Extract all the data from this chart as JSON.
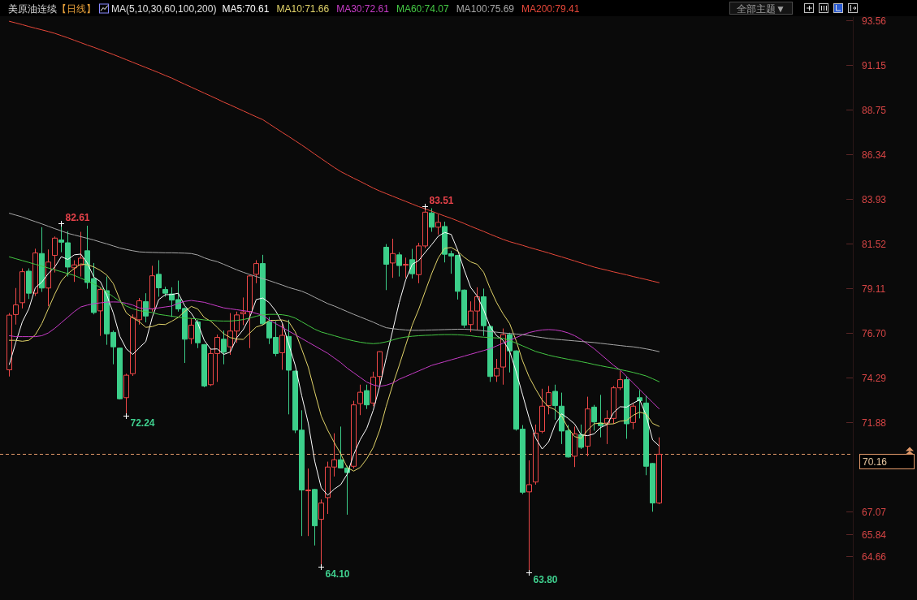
{
  "chart_data": {
    "type": "candlestick",
    "title": "美原油连续",
    "subtitle": "【日线】",
    "legend_title": "MA(5,10,30,60,100,200)",
    "legend": "top",
    "tick_labels": "y",
    "categories": [
      null,
      null,
      null,
      null,
      null,
      null,
      null,
      null,
      null,
      null,
      null,
      null,
      null,
      null,
      null,
      null,
      null,
      null,
      null,
      null,
      null,
      null,
      null,
      null,
      null,
      null,
      null,
      null,
      null,
      null,
      null,
      null,
      null,
      null,
      null,
      null,
      null,
      null,
      null,
      null,
      null,
      null,
      null,
      null,
      null,
      null,
      null,
      null,
      null,
      null,
      null,
      null,
      null,
      null,
      null,
      null,
      null,
      null,
      null,
      null,
      null,
      null,
      null,
      null,
      null,
      null,
      null,
      null,
      null,
      null,
      null,
      null,
      null,
      null,
      null,
      null,
      null,
      null,
      null,
      null,
      null,
      null,
      null,
      null,
      null,
      null,
      null,
      null,
      null,
      null,
      null,
      null,
      null,
      null,
      null,
      null,
      null,
      null,
      null,
      null,
      null
    ],
    "ohlc": [
      [
        74.71,
        77.77,
        74.35,
        77.66
      ],
      [
        77.69,
        79.12,
        77.15,
        78.21
      ],
      [
        78.33,
        80.18,
        78.02,
        80.0
      ],
      [
        80.03,
        80.18,
        78.53,
        78.84
      ],
      [
        78.84,
        81.24,
        78.69,
        81.01
      ],
      [
        80.98,
        82.4,
        78.91,
        79.12
      ],
      [
        79.12,
        81.2,
        78.14,
        80.52
      ],
      [
        80.88,
        81.9,
        79.96,
        81.81
      ],
      [
        81.71,
        82.61,
        81.05,
        81.59
      ],
      [
        81.56,
        82.19,
        79.74,
        80.25
      ],
      [
        80.21,
        80.62,
        79.45,
        80.37
      ],
      [
        80.35,
        82.15,
        79.74,
        80.73
      ],
      [
        81.13,
        82.48,
        79.08,
        79.42
      ],
      [
        79.63,
        80.47,
        77.7,
        77.8
      ],
      [
        77.89,
        79.16,
        76.54,
        79.04
      ],
      [
        78.98,
        79.74,
        76.06,
        76.65
      ],
      [
        76.73,
        76.83,
        75.01,
        75.95
      ],
      [
        75.88,
        75.91,
        73.11,
        73.15
      ],
      [
        73.21,
        74.5,
        72.24,
        74.42
      ],
      [
        74.5,
        77.7,
        74.38,
        77.53
      ],
      [
        77.41,
        78.58,
        77.15,
        78.43
      ],
      [
        78.39,
        78.84,
        77.27,
        77.61
      ],
      [
        77.99,
        80.32,
        77.85,
        79.78
      ],
      [
        79.86,
        80.62,
        78.65,
        79.13
      ],
      [
        79.04,
        79.19,
        78.65,
        78.84
      ],
      [
        78.8,
        79.16,
        77.56,
        78.47
      ],
      [
        78.5,
        79.52,
        77.85,
        77.99
      ],
      [
        78.02,
        78.07,
        75.08,
        76.36
      ],
      [
        76.39,
        77.48,
        76.1,
        77.12
      ],
      [
        77.29,
        77.41,
        75.88,
        76.17
      ],
      [
        76.07,
        76.1,
        73.77,
        73.84
      ],
      [
        73.91,
        75.88,
        73.84,
        75.59
      ],
      [
        75.59,
        76.61,
        74.06,
        76.46
      ],
      [
        76.36,
        76.83,
        75.01,
        75.66
      ],
      [
        75.95,
        77.77,
        75.52,
        76.8
      ],
      [
        76.8,
        77.85,
        76.17,
        77.67
      ],
      [
        77.73,
        78.61,
        77.12,
        77.83
      ],
      [
        77.85,
        79.82,
        75.88,
        79.77
      ],
      [
        79.86,
        80.62,
        79.38,
        80.44
      ],
      [
        80.44,
        80.91,
        77.12,
        77.19
      ],
      [
        77.29,
        77.56,
        76.1,
        76.43
      ],
      [
        76.46,
        77.34,
        75.44,
        75.59
      ],
      [
        75.63,
        77.19,
        74.71,
        76.57
      ],
      [
        76.51,
        77.41,
        72.31,
        74.69
      ],
      [
        74.64,
        74.67,
        71.3,
        71.46
      ],
      [
        71.46,
        72.53,
        65.75,
        68.23
      ],
      [
        68.2,
        69.39,
        65.75,
        68.23
      ],
      [
        68.26,
        68.29,
        65.24,
        66.3
      ],
      [
        66.65,
        67.72,
        64.1,
        67.53
      ],
      [
        67.82,
        69.76,
        66.94,
        69.47
      ],
      [
        69.47,
        71.29,
        68.96,
        69.86
      ],
      [
        69.86,
        71.65,
        69.39,
        69.42
      ],
      [
        69.42,
        69.54,
        66.9,
        69.17
      ],
      [
        69.51,
        73.04,
        69.39,
        72.82
      ],
      [
        72.89,
        73.91,
        72.27,
        73.5
      ],
      [
        73.59,
        73.91,
        72.6,
        72.82
      ],
      [
        72.92,
        74.61,
        72.75,
        74.32
      ],
      [
        74.35,
        75.71,
        73.91,
        75.69
      ],
      [
        81.32,
        81.49,
        79.01,
        80.4
      ],
      [
        80.47,
        81.78,
        79.67,
        80.98
      ],
      [
        80.91,
        81.05,
        79.74,
        80.33
      ],
      [
        80.35,
        80.76,
        79.67,
        80.4
      ],
      [
        80.65,
        81.23,
        79.63,
        79.89
      ],
      [
        79.84,
        81.56,
        79.38,
        81.39
      ],
      [
        81.39,
        83.51,
        81.27,
        83.21
      ],
      [
        83.17,
        83.42,
        82.15,
        82.4
      ],
      [
        82.4,
        83.09,
        82.0,
        82.66
      ],
      [
        82.44,
        82.7,
        80.5,
        80.94
      ],
      [
        80.97,
        81.13,
        79.89,
        80.85
      ],
      [
        80.88,
        80.91,
        78.5,
        78.94
      ],
      [
        79.01,
        79.04,
        76.97,
        77.12
      ],
      [
        77.15,
        78.4,
        76.75,
        77.88
      ],
      [
        77.88,
        79.16,
        76.83,
        78.65
      ],
      [
        78.65,
        79.09,
        76.54,
        77.09
      ],
      [
        77.05,
        77.12,
        74.06,
        74.35
      ],
      [
        74.38,
        75.3,
        74.06,
        74.79
      ],
      [
        74.86,
        76.94,
        73.91,
        76.61
      ],
      [
        76.61,
        76.71,
        74.57,
        75.73
      ],
      [
        75.73,
        75.76,
        71.43,
        71.51
      ],
      [
        71.51,
        71.73,
        68.01,
        68.11
      ],
      [
        68.13,
        69.83,
        63.8,
        68.52
      ],
      [
        68.66,
        71.76,
        68.52,
        71.29
      ],
      [
        71.39,
        73.69,
        71.29,
        72.75
      ],
      [
        72.78,
        73.84,
        72.31,
        73.48
      ],
      [
        73.55,
        73.91,
        72.02,
        72.78
      ],
      [
        72.75,
        73.48,
        70.71,
        71.41
      ],
      [
        71.43,
        71.73,
        69.98,
        70.01
      ],
      [
        70.05,
        71.65,
        69.47,
        71.26
      ],
      [
        71.22,
        71.76,
        70.44,
        70.53
      ],
      [
        70.59,
        73.26,
        70.05,
        72.6
      ],
      [
        72.7,
        72.82,
        71.43,
        71.9
      ],
      [
        71.84,
        73.36,
        71.07,
        71.7
      ],
      [
        71.84,
        72.53,
        70.71,
        72.09
      ],
      [
        72.09,
        73.84,
        71.8,
        73.74
      ],
      [
        73.74,
        74.64,
        73.62,
        74.18
      ],
      [
        74.18,
        74.35,
        70.99,
        71.8
      ],
      [
        71.87,
        72.89,
        71.51,
        72.75
      ],
      [
        73.21,
        73.62,
        72.09,
        73.04
      ],
      [
        72.92,
        73.33,
        69.03,
        69.51
      ],
      [
        69.66,
        69.69,
        67.06,
        67.53
      ],
      [
        67.53,
        71.07,
        67.47,
        70.16
      ]
    ],
    "colors": [
      "#f04848",
      "#f04848",
      "#f04848",
      "#3ccf8a",
      "#f04848",
      "#3ccf8a",
      "#f04848",
      "#f04848",
      "#3ccf8a",
      "#3ccf8a",
      "#f04848",
      "#f04848",
      "#3ccf8a",
      "#3ccf8a",
      "#f04848",
      "#3ccf8a",
      "#3ccf8a",
      "#3ccf8a",
      "#f04848",
      "#f04848",
      "#f04848",
      "#3ccf8a",
      "#f04848",
      "#3ccf8a",
      "#3ccf8a",
      "#3ccf8a",
      "#3ccf8a",
      "#3ccf8a",
      "#f04848",
      "#3ccf8a",
      "#3ccf8a",
      "#f04848",
      "#f04848",
      "#3ccf8a",
      "#f04848",
      "#f04848",
      "#f04848",
      "#f04848",
      "#f04848",
      "#3ccf8a",
      "#3ccf8a",
      "#3ccf8a",
      "#f04848",
      "#3ccf8a",
      "#3ccf8a",
      "#3ccf8a",
      "#f04848",
      "#3ccf8a",
      "#f04848",
      "#f04848",
      "#f04848",
      "#3ccf8a",
      "#3ccf8a",
      "#f04848",
      "#f04848",
      "#3ccf8a",
      "#f04848",
      "#f04848",
      "#3ccf8a",
      "#f04848",
      "#3ccf8a",
      "#f04848",
      "#3ccf8a",
      "#f04848",
      "#f04848",
      "#3ccf8a",
      "#f04848",
      "#3ccf8a",
      "#3ccf8a",
      "#3ccf8a",
      "#3ccf8a",
      "#f04848",
      "#f04848",
      "#3ccf8a",
      "#3ccf8a",
      "#f04848",
      "#f04848",
      "#3ccf8a",
      "#3ccf8a",
      "#3ccf8a",
      "#f04848",
      "#f04848",
      "#f04848",
      "#f04848",
      "#3ccf8a",
      "#3ccf8a",
      "#3ccf8a",
      "#f04848",
      "#3ccf8a",
      "#f04848",
      "#3ccf8a",
      "#3ccf8a",
      "#f04848",
      "#f04848",
      "#f04848",
      "#3ccf8a",
      "#f04848",
      "#3ccf8a",
      "#3ccf8a",
      "#3ccf8a",
      "#f04848"
    ],
    "series": [
      {
        "name": "MA5:70.61",
        "type": "line",
        "color": "#ffffff",
        "values": [
          75.0,
          76.2,
          77.3,
          78.0,
          79.14,
          79.44,
          79.9,
          80.26,
          80.81,
          80.66,
          80.91,
          80.95,
          80.47,
          79.71,
          79.47,
          78.73,
          77.77,
          76.52,
          75.84,
          75.54,
          75.9,
          76.23,
          77.55,
          78.5,
          78.76,
          78.77,
          78.84,
          78.16,
          77.76,
          77.22,
          76.3,
          75.82,
          75.84,
          75.54,
          75.67,
          76.44,
          76.88,
          77.55,
          78.5,
          78.58,
          78.33,
          77.88,
          77.24,
          76.09,
          74.95,
          73.31,
          71.84,
          69.78,
          68.35,
          67.95,
          68.28,
          68.52,
          69.09,
          70.15,
          70.95,
          71.55,
          72.53,
          73.83,
          75.35,
          76.84,
          78.34,
          79.56,
          80.4,
          80.6,
          81.04,
          81.46,
          81.91,
          82.12,
          82.01,
          81.16,
          80.1,
          79.15,
          78.69,
          77.94,
          77.02,
          76.55,
          76.3,
          75.71,
          74.6,
          73.35,
          72.1,
          71.03,
          70.44,
          70.83,
          71.76,
          72.34,
          72.09,
          71.79,
          71.2,
          71.16,
          71.26,
          71.6,
          71.76,
          72.41,
          72.72,
          72.7,
          72.91,
          73.1,
          72.26,
          70.93,
          70.61
        ]
      },
      {
        "name": "MA10:71.66",
        "type": "line",
        "color": "#e2d46a",
        "values": [
          76.3,
          76.3,
          76.25,
          76.3,
          76.6,
          77.2,
          78.0,
          78.8,
          79.5,
          79.9,
          80.17,
          80.42,
          80.37,
          80.26,
          80.07,
          79.82,
          79.36,
          78.5,
          77.78,
          77.51,
          77.31,
          77.0,
          77.04,
          77.17,
          77.15,
          77.33,
          77.54,
          77.86,
          78.13,
          77.99,
          77.53,
          77.33,
          77.0,
          76.65,
          76.45,
          76.37,
          76.35,
          76.69,
          77.02,
          77.13,
          77.38,
          77.38,
          77.4,
          77.3,
          76.76,
          75.82,
          74.86,
          73.51,
          72.22,
          71.45,
          70.79,
          70.18,
          69.44,
          69.25,
          69.45,
          69.91,
          70.52,
          71.46,
          72.75,
          73.9,
          74.95,
          76.04,
          77.12,
          77.97,
          78.94,
          79.9,
          80.74,
          81.26,
          81.31,
          81.1,
          80.78,
          80.53,
          80.4,
          79.97,
          79.09,
          78.33,
          77.72,
          77.2,
          76.27,
          75.18,
          74.32,
          73.67,
          73.08,
          72.71,
          72.56,
          72.22,
          71.56,
          71.11,
          71.01,
          71.46,
          71.8,
          71.84,
          71.78,
          71.8,
          71.94,
          71.98,
          72.26,
          72.43,
          72.33,
          71.82,
          71.66
        ]
      },
      {
        "name": "MA30:72.61",
        "type": "line",
        "color": "#c83cc8",
        "values": [
          76.55,
          76.5,
          76.5,
          76.5,
          76.5,
          76.55,
          76.7,
          76.95,
          77.25,
          77.55,
          77.85,
          78.1,
          78.2,
          78.28,
          78.32,
          78.36,
          78.37,
          78.36,
          78.3,
          78.2,
          78.05,
          78.0,
          78.0,
          78.05,
          78.1,
          78.15,
          78.3,
          78.4,
          78.45,
          78.4,
          78.35,
          78.25,
          78.15,
          78.05,
          78.0,
          77.95,
          77.9,
          77.85,
          77.75,
          77.65,
          77.4,
          77.2,
          77.0,
          76.8,
          76.6,
          76.4,
          76.2,
          76.0,
          75.8,
          75.6,
          75.35,
          75.1,
          74.8,
          74.55,
          74.3,
          74.05,
          73.9,
          73.82,
          73.88,
          74.0,
          74.2,
          74.35,
          74.5,
          74.65,
          74.8,
          74.95,
          75.05,
          75.15,
          75.25,
          75.35,
          75.45,
          75.55,
          75.65,
          75.75,
          75.85,
          76.0,
          76.15,
          76.3,
          76.45,
          76.6,
          76.72,
          76.8,
          76.86,
          76.88,
          76.86,
          76.8,
          76.7,
          76.55,
          76.35,
          76.1,
          75.85,
          75.55,
          75.25,
          74.95,
          74.7,
          74.35,
          74.0,
          73.65,
          73.3,
          72.95,
          72.61
        ]
      },
      {
        "name": "MA60:74.07",
        "type": "line",
        "color": "#44c844",
        "values": [
          80.8,
          80.7,
          80.6,
          80.5,
          80.4,
          80.3,
          80.2,
          80.1,
          80.0,
          79.9,
          79.8,
          79.65,
          79.5,
          79.35,
          79.15,
          78.9,
          78.65,
          78.4,
          78.15,
          78.0,
          77.9,
          77.85,
          77.8,
          77.7,
          77.65,
          77.6,
          77.55,
          77.5,
          77.48,
          77.45,
          77.4,
          77.37,
          77.35,
          77.34,
          77.34,
          77.37,
          77.42,
          77.5,
          77.6,
          77.68,
          77.7,
          77.7,
          77.68,
          77.62,
          77.5,
          77.3,
          77.1,
          76.9,
          76.75,
          76.65,
          76.55,
          76.45,
          76.35,
          76.27,
          76.2,
          76.15,
          76.12,
          76.15,
          76.22,
          76.32,
          76.42,
          76.48,
          76.52,
          76.55,
          76.57,
          76.58,
          76.6,
          76.61,
          76.61,
          76.6,
          76.58,
          76.55,
          76.5,
          76.47,
          76.45,
          76.43,
          76.4,
          76.3,
          76.15,
          76.0,
          75.85,
          75.7,
          75.6,
          75.5,
          75.42,
          75.35,
          75.28,
          75.22,
          75.15,
          75.08,
          75.0,
          74.93,
          74.86,
          74.8,
          74.72,
          74.65,
          74.57,
          74.48,
          74.38,
          74.23,
          74.07
        ]
      },
      {
        "name": "MA100:75.69",
        "type": "line",
        "color": "#a8a8a8",
        "values": [
          83.15,
          83.05,
          82.95,
          82.82,
          82.7,
          82.58,
          82.45,
          82.32,
          82.2,
          82.07,
          81.98,
          81.89,
          81.8,
          81.71,
          81.6,
          81.5,
          81.39,
          81.28,
          81.2,
          81.13,
          81.07,
          81.05,
          81.04,
          81.03,
          81.02,
          81.02,
          81.01,
          81.0,
          80.98,
          80.9,
          80.75,
          80.63,
          80.54,
          80.4,
          80.25,
          80.1,
          79.97,
          79.85,
          79.74,
          79.63,
          79.52,
          79.4,
          79.28,
          79.15,
          79.05,
          78.95,
          78.8,
          78.62,
          78.45,
          78.28,
          78.15,
          78.0,
          77.85,
          77.7,
          77.56,
          77.42,
          77.28,
          77.12,
          76.98,
          76.93,
          76.89,
          76.86,
          76.84,
          76.84,
          76.85,
          76.86,
          76.87,
          76.88,
          76.89,
          76.9,
          76.9,
          76.88,
          76.85,
          76.81,
          76.77,
          76.74,
          76.7,
          76.67,
          76.64,
          76.61,
          76.56,
          76.5,
          76.45,
          76.4,
          76.36,
          76.33,
          76.3,
          76.27,
          76.24,
          76.21,
          76.18,
          76.14,
          76.1,
          76.06,
          76.02,
          75.98,
          75.95,
          75.9,
          75.84,
          75.77,
          75.69
        ]
      },
      {
        "name": "MA200:79.41",
        "type": "line",
        "color": "#e8483a",
        "values": [
          93.5,
          93.41,
          93.32,
          93.22,
          93.13,
          93.04,
          92.95,
          92.85,
          92.73,
          92.61,
          92.48,
          92.35,
          92.22,
          92.1,
          91.97,
          91.84,
          91.71,
          91.57,
          91.43,
          91.29,
          91.15,
          91.01,
          90.87,
          90.73,
          90.58,
          90.44,
          90.27,
          90.11,
          89.95,
          89.79,
          89.63,
          89.47,
          89.31,
          89.14,
          88.99,
          88.83,
          88.67,
          88.51,
          88.35,
          88.2,
          87.97,
          87.74,
          87.51,
          87.29,
          87.06,
          86.83,
          86.59,
          86.34,
          86.1,
          85.86,
          85.62,
          85.4,
          85.22,
          85.04,
          84.87,
          84.69,
          84.51,
          84.35,
          84.21,
          84.07,
          83.93,
          83.79,
          83.65,
          83.51,
          83.39,
          83.26,
          83.13,
          83.0,
          82.88,
          82.74,
          82.6,
          82.45,
          82.31,
          82.17,
          82.02,
          81.88,
          81.74,
          81.62,
          81.52,
          81.42,
          81.31,
          81.21,
          81.11,
          81.01,
          80.9,
          80.8,
          80.69,
          80.58,
          80.47,
          80.36,
          80.25,
          80.16,
          80.08,
          79.99,
          79.91,
          79.83,
          79.74,
          79.66,
          79.58,
          79.49,
          79.41
        ]
      },
      {
        "type": "scatter",
        "marker": "cross",
        "color": "#ffffff",
        "values": [
          null,
          null,
          null,
          null,
          null,
          null,
          null,
          null,
          82.61,
          null,
          null,
          null,
          null,
          null,
          null,
          null,
          null,
          null,
          72.24,
          null,
          null,
          null,
          null,
          null,
          null,
          null,
          null,
          null,
          null,
          null,
          null,
          null,
          null,
          null,
          null,
          null,
          null,
          null,
          null,
          null,
          null,
          null,
          null,
          null,
          null,
          null,
          null,
          null,
          64.1,
          null,
          null,
          null,
          null,
          null,
          null,
          null,
          null,
          null,
          null,
          null,
          null,
          null,
          null,
          null,
          83.51,
          null,
          null,
          null,
          null,
          null,
          null,
          null,
          null,
          null,
          null,
          null,
          null,
          null,
          null,
          null,
          63.8,
          null,
          null,
          null,
          null,
          null,
          null,
          null,
          null,
          null,
          null,
          null,
          null,
          null,
          null,
          null,
          null,
          null,
          null,
          null,
          null
        ],
        "value_labels": [
          null,
          null,
          null,
          null,
          null,
          null,
          null,
          null,
          "82.61",
          null,
          null,
          null,
          null,
          null,
          null,
          null,
          null,
          null,
          "72.24",
          null,
          null,
          null,
          null,
          null,
          null,
          null,
          null,
          null,
          null,
          null,
          null,
          null,
          null,
          null,
          null,
          null,
          null,
          null,
          null,
          null,
          null,
          null,
          null,
          null,
          null,
          null,
          null,
          null,
          "64.10",
          null,
          null,
          null,
          null,
          null,
          null,
          null,
          null,
          null,
          null,
          null,
          null,
          null,
          null,
          null,
          "83.51",
          null,
          null,
          null,
          null,
          null,
          null,
          null,
          null,
          null,
          null,
          null,
          null,
          null,
          null,
          null,
          "63.80",
          null,
          null,
          null,
          null,
          null,
          null,
          null,
          null,
          null,
          null,
          null,
          null,
          null,
          null,
          null,
          null,
          null,
          null,
          null,
          null
        ]
      }
    ],
    "ylim": [
      62.3,
      93.73
    ],
    "yticks": [
      93.56,
      91.15,
      88.75,
      86.34,
      83.93,
      81.52,
      79.11,
      {
        "value": 76.7,
        "label": "76.70"
      },
      74.29,
      71.88,
      67.07,
      65.84,
      64.66
    ],
    "ref_lines": [
      {
        "axis": "y",
        "value": 70.16,
        "label": "70.16",
        "color": "#e39a6a",
        "line_style": "dashed"
      }
    ],
    "annotations": [
      "全部主题▼"
    ]
  }
}
